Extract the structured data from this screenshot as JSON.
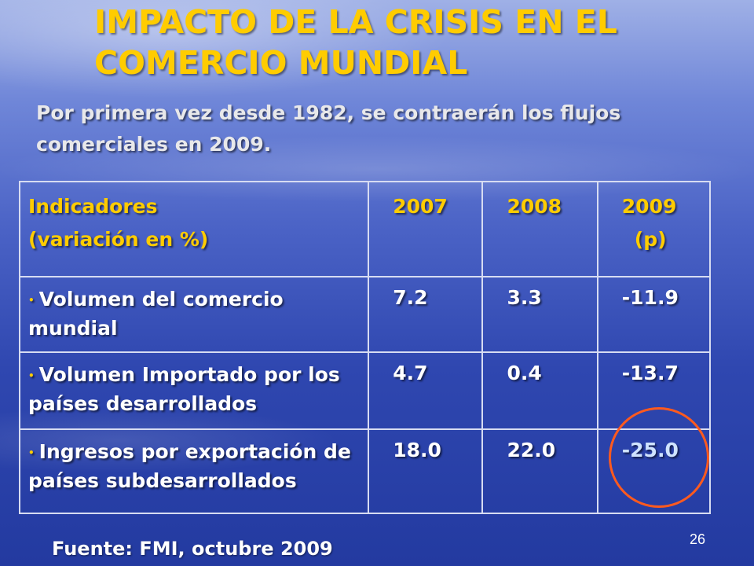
{
  "title": {
    "line1": "IMPACTO DE LA CRISIS EN EL",
    "line2": "COMERCIO MUNDIAL"
  },
  "subtitle": "Por primera vez desde 1982, se contraerán los flujos comerciales en 2009.",
  "table": {
    "header": {
      "indicator_line1": "Indicadores",
      "indicator_line2": "(variación en %)",
      "col_2007": "2007",
      "col_2008": "2008",
      "col_2009_line1": "2009",
      "col_2009_line2": "(p)"
    },
    "bullet": "•",
    "rows": [
      {
        "label": "Volumen del comercio mundial",
        "v2007": "7.2",
        "v2008": "3.3",
        "v2009": "-11.9"
      },
      {
        "label": "Volumen Importado por los países desarrollados",
        "v2007": "4.7",
        "v2008": "0.4",
        "v2009": "-13.7"
      },
      {
        "label": "Ingresos por exportación de países subdesarrollados",
        "v2007": "18.0",
        "v2008": "22.0",
        "v2009": "-25.0"
      }
    ]
  },
  "source": "Fuente: FMI, octubre 2009",
  "page_number": "26",
  "colors": {
    "title": "#ffcc00",
    "header_text": "#ffcc00",
    "body_text": "#ffffff",
    "highlight_circle": "#ff5a1e",
    "background": "#2f47b0"
  }
}
